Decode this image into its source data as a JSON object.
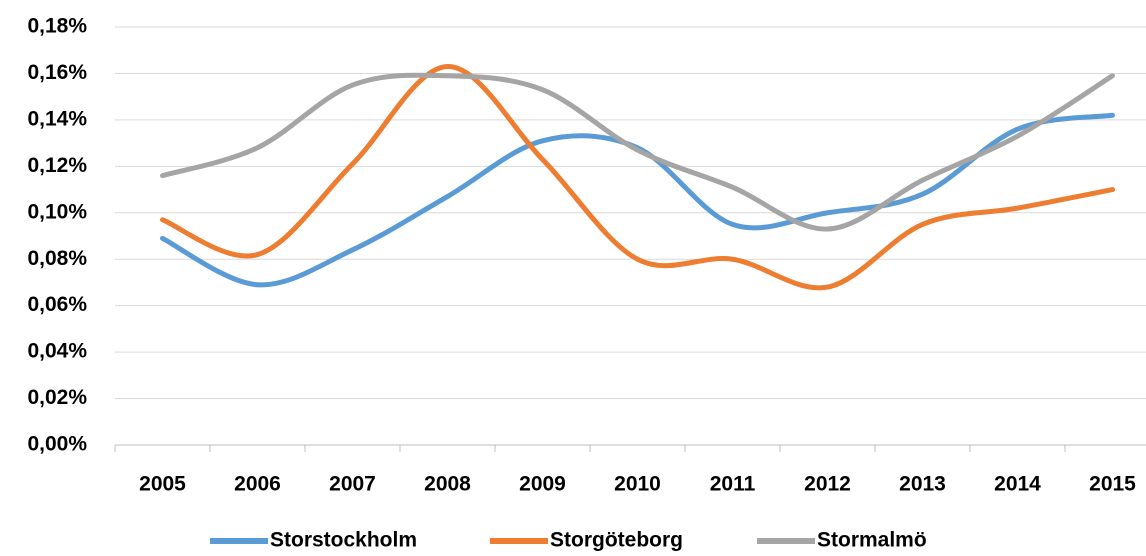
{
  "chart_data": {
    "type": "line",
    "categories": [
      "2005",
      "2006",
      "2007",
      "2008",
      "2009",
      "2010",
      "2011",
      "2012",
      "2013",
      "2014",
      "2015"
    ],
    "series": [
      {
        "name": "Storstockholm",
        "color": "#5b9bd5",
        "values": [
          0.089,
          0.069,
          0.084,
          0.107,
          0.131,
          0.128,
          0.095,
          0.1,
          0.108,
          0.136,
          0.142
        ]
      },
      {
        "name": "Storgöteborg",
        "color": "#ed7d31",
        "values": [
          0.097,
          0.082,
          0.121,
          0.163,
          0.123,
          0.08,
          0.08,
          0.068,
          0.095,
          0.102,
          0.11
        ]
      },
      {
        "name": "Stormalmö",
        "color": "#a5a5a5",
        "values": [
          0.116,
          0.128,
          0.155,
          0.159,
          0.153,
          0.127,
          0.111,
          0.093,
          0.114,
          0.133,
          0.159
        ]
      }
    ],
    "ylim": [
      0,
      0.18
    ],
    "yticks": [
      {
        "value": 0,
        "label": "0,00%"
      },
      {
        "value": 0.02,
        "label": "0,02%"
      },
      {
        "value": 0.04,
        "label": "0,04%"
      },
      {
        "value": 0.06,
        "label": "0,06%"
      },
      {
        "value": 0.08,
        "label": "0,08%"
      },
      {
        "value": 0.1,
        "label": "0,10%"
      },
      {
        "value": 0.12,
        "label": "0,12%"
      },
      {
        "value": 0.14,
        "label": "0,14%"
      },
      {
        "value": 0.16,
        "label": "0,16%"
      },
      {
        "value": 0.18,
        "label": "0,18%"
      }
    ],
    "grid": true,
    "legend": "bottom"
  }
}
